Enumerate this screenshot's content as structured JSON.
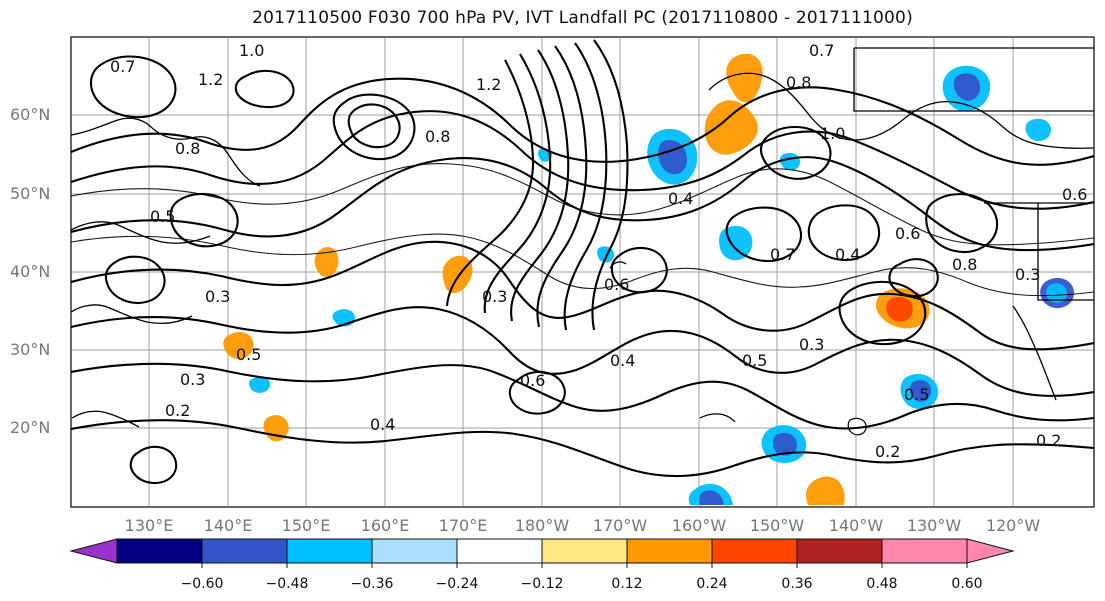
{
  "title": "2017110500 F030 700 hPa PV, IVT Landfall PC (2017110800 - 2017111000)",
  "map": {
    "lat_ticks": [
      "20°N",
      "30°N",
      "40°N",
      "50°N",
      "60°N"
    ],
    "lon_ticks": [
      "130°E",
      "140°E",
      "150°E",
      "160°E",
      "170°E",
      "180°W",
      "170°W",
      "160°W",
      "150°W",
      "140°W",
      "130°W",
      "120°W"
    ],
    "contour_labels": [
      "0.7",
      "1.0",
      "1.2",
      "0.8",
      "0.5",
      "0.3",
      "0.4",
      "1.2",
      "0.8",
      "0.6",
      "0.5",
      "0.3",
      "0.2",
      "0.4",
      "0.3",
      "0.6",
      "0.4",
      "0.5",
      "0.3",
      "0.2",
      "0.7",
      "0.8",
      "1.0",
      "0.7",
      "0.4",
      "0.6",
      "0.8",
      "0.3",
      "0.2",
      "0.6",
      "0.5"
    ]
  },
  "colorbar": {
    "labels": [
      "−0.60",
      "−0.48",
      "−0.36",
      "−0.24",
      "−0.12",
      "0.12",
      "0.24",
      "0.36",
      "0.48",
      "0.60"
    ],
    "colors": [
      "#9933cc",
      "#000080",
      "#3355cc",
      "#00bfff",
      "#aadfff",
      "#ffffff",
      "#ffe680",
      "#ff9900",
      "#ff4500",
      "#b22222",
      "#ff88aa"
    ]
  }
}
